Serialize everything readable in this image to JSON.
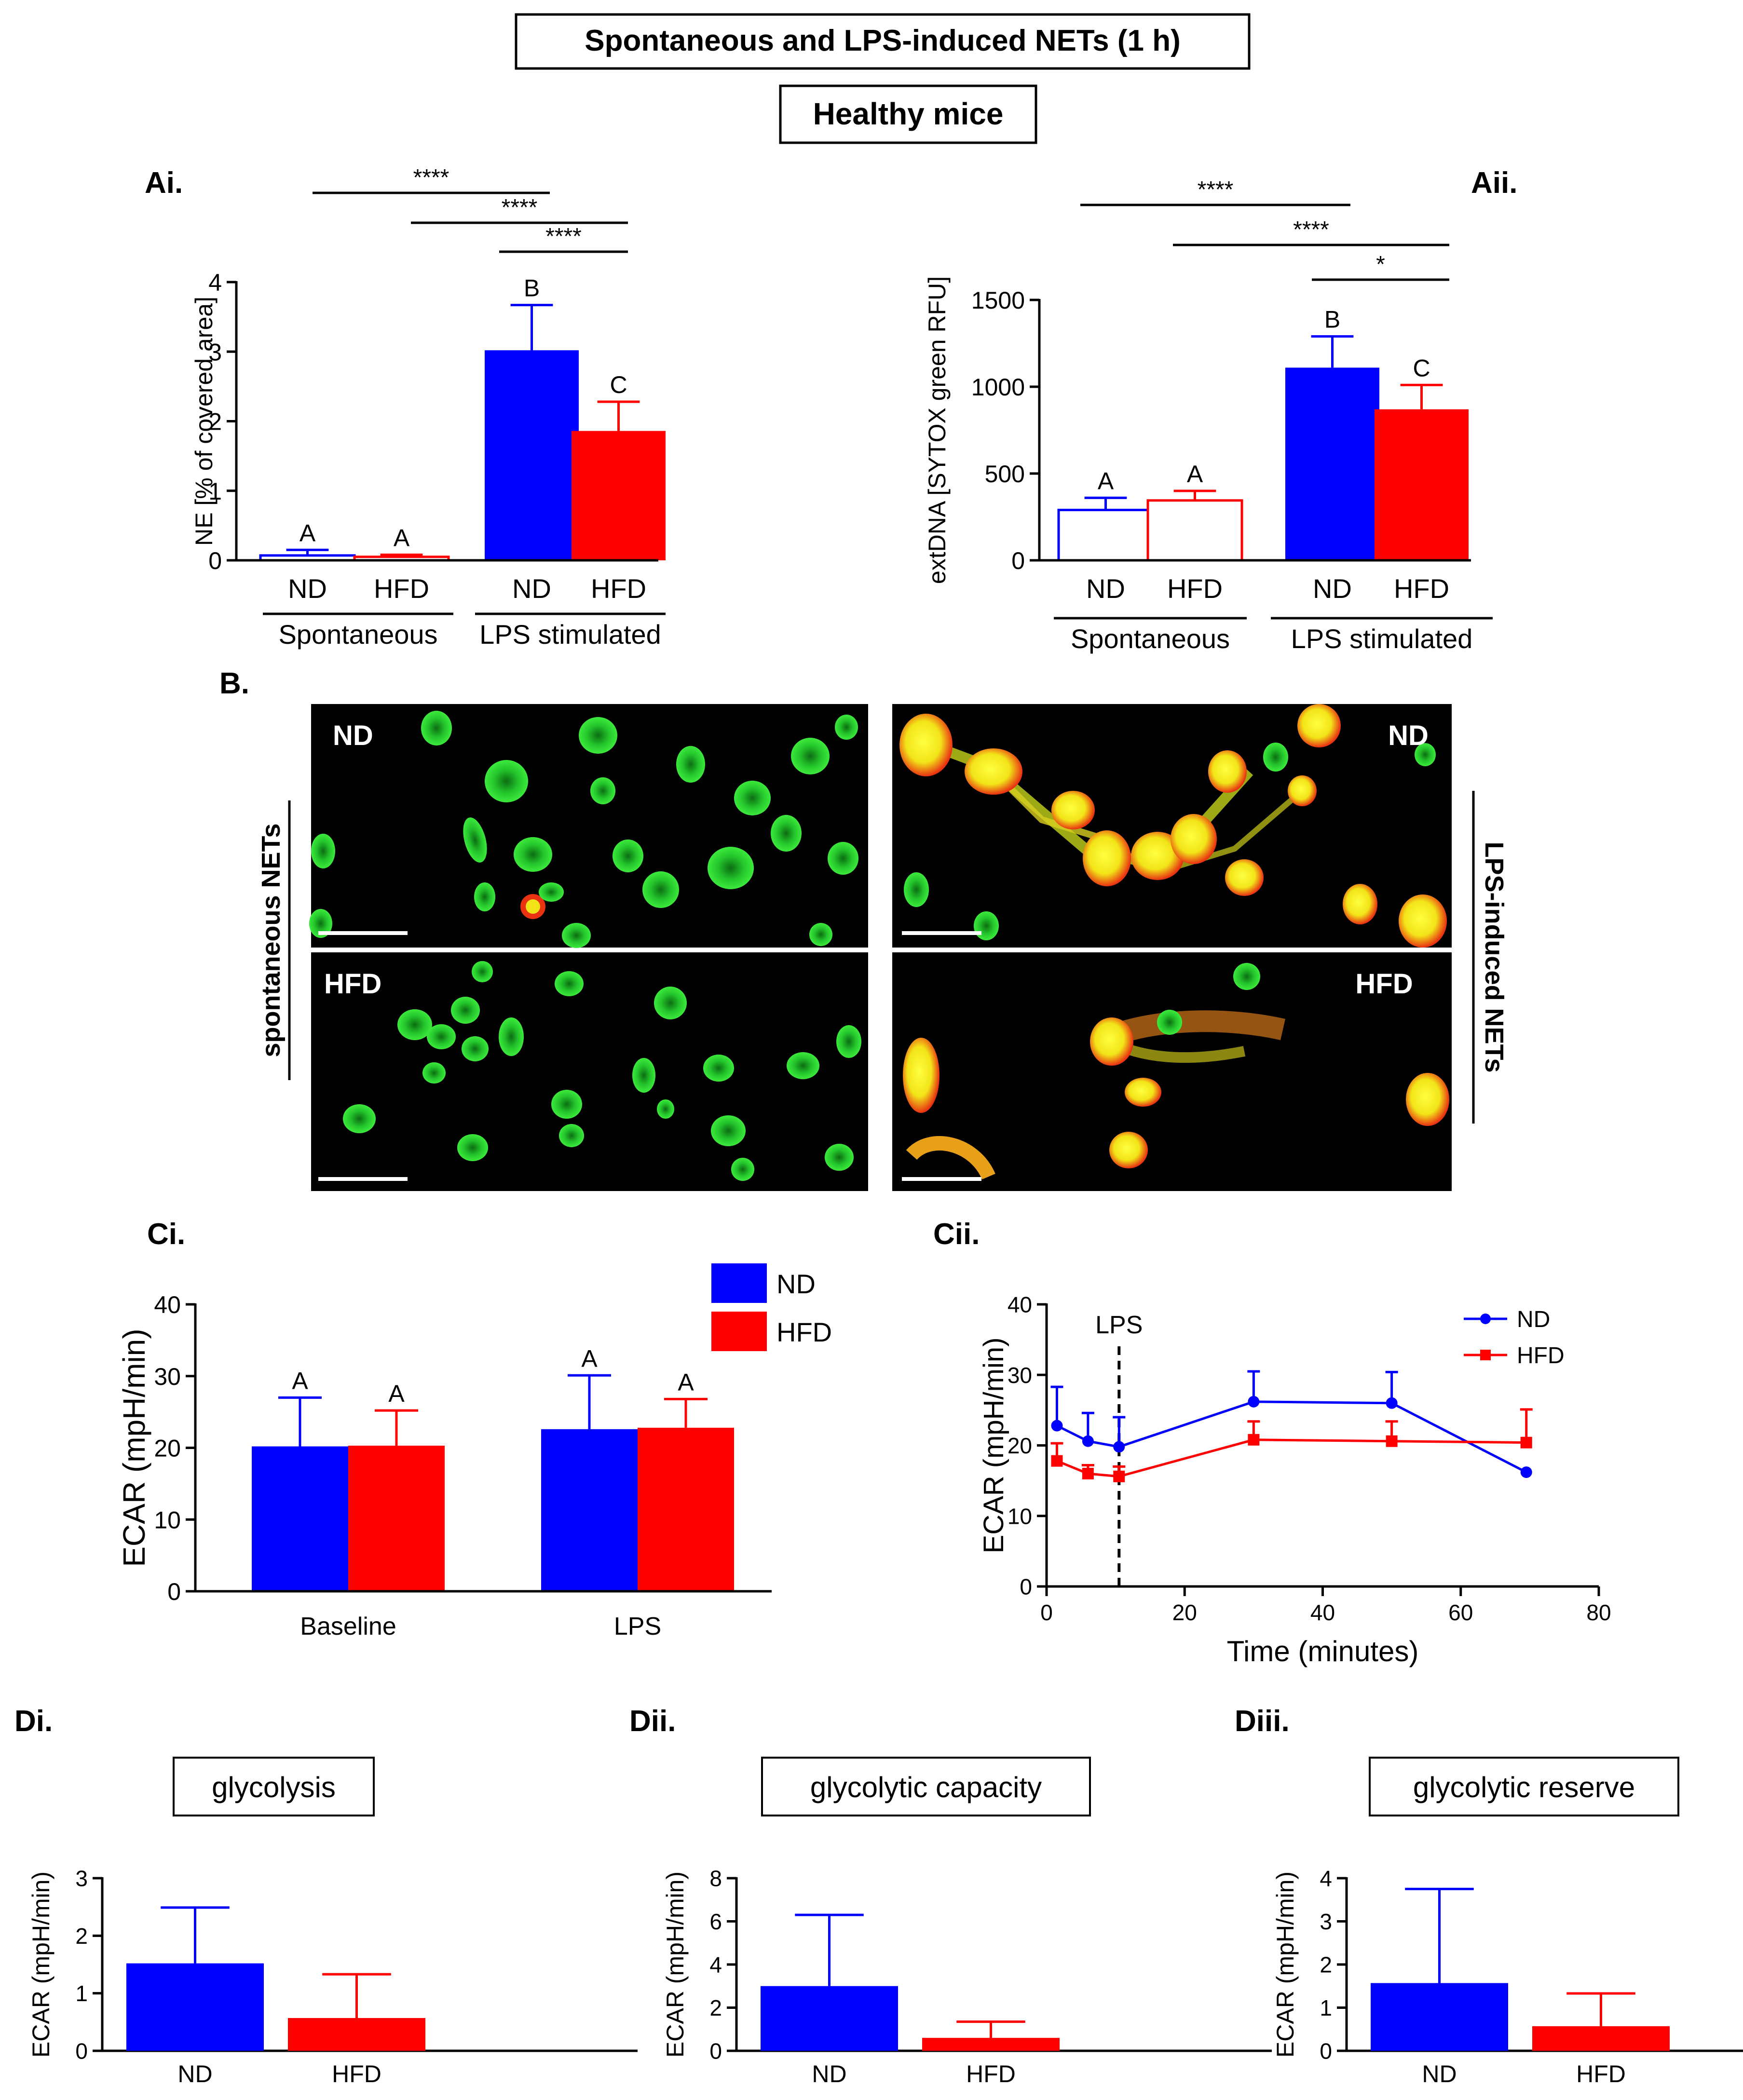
{
  "header": {
    "title": "Spontaneous and LPS-induced NETs (1 h)",
    "subtitle": "Healthy mice"
  },
  "colors": {
    "nd": "#0000ff",
    "hfd": "#ff0000",
    "axis": "#000000"
  },
  "legend": {
    "nd": "ND",
    "hfd": "HFD"
  },
  "chart_data": [
    {
      "id": "Ai",
      "panel": "Ai.",
      "type": "bar",
      "ylabel": "NE [% of covered area]",
      "ylim": [
        0,
        4
      ],
      "yticks": [
        "0",
        "1",
        "2",
        "3",
        "4"
      ],
      "categories": [
        "ND",
        "HFD",
        "ND",
        "HFD"
      ],
      "groups": [
        "Spontaneous",
        "LPS stimulated"
      ],
      "values": [
        0.07,
        0.05,
        3.02,
        1.86
      ],
      "errors": [
        0.08,
        0.03,
        0.65,
        0.42
      ],
      "filled": [
        false,
        false,
        true,
        true
      ],
      "letters": [
        "A",
        "A",
        "B",
        "C"
      ],
      "significance": [
        "****",
        "****",
        "****"
      ]
    },
    {
      "id": "Aii",
      "panel": "Aii.",
      "type": "bar",
      "ylabel": "extDNA [SYTOX green RFU]",
      "ylim": [
        0,
        1500
      ],
      "yticks": [
        "0",
        "500",
        "1000",
        "1500"
      ],
      "categories": [
        "ND",
        "HFD",
        "ND",
        "HFD"
      ],
      "groups": [
        "Spontaneous",
        "LPS stimulated"
      ],
      "values": [
        290,
        345,
        1110,
        870
      ],
      "errors": [
        70,
        55,
        180,
        140
      ],
      "filled": [
        false,
        false,
        true,
        true
      ],
      "letters": [
        "A",
        "A",
        "B",
        "C"
      ],
      "significance": [
        "****",
        "****",
        "*"
      ]
    },
    {
      "id": "Ci",
      "panel": "Ci.",
      "type": "bar",
      "ylabel": "ECAR (mpH/min)",
      "ylim": [
        0,
        40
      ],
      "yticks": [
        "0",
        "10",
        "20",
        "30",
        "40"
      ],
      "categories": [
        "Baseline",
        "LPS"
      ],
      "series": [
        {
          "name": "ND",
          "values": [
            20.2,
            22.6
          ],
          "errors": [
            6.8,
            7.5
          ],
          "letters": [
            "A",
            "A"
          ]
        },
        {
          "name": "HFD",
          "values": [
            20.3,
            22.8
          ],
          "errors": [
            4.9,
            4.0
          ],
          "letters": [
            "A",
            "A"
          ]
        }
      ]
    },
    {
      "id": "Cii",
      "panel": "Cii.",
      "type": "line",
      "ylabel": "ECAR (mpH/min)",
      "xlabel": "Time (minutes)",
      "xlim": [
        0,
        80
      ],
      "ylim": [
        0,
        40
      ],
      "xticks": [
        "0",
        "20",
        "40",
        "60",
        "80"
      ],
      "yticks": [
        "0",
        "10",
        "20",
        "30",
        "40"
      ],
      "annotation": {
        "label": "LPS",
        "x": 10.5
      },
      "series": [
        {
          "name": "ND",
          "x": [
            1.5,
            6,
            10.5,
            30,
            50,
            69.5
          ],
          "y": [
            22.8,
            20.6,
            19.8,
            26.2,
            26.0,
            16.2
          ],
          "errors": [
            5.5,
            4.0,
            4.2,
            4.3,
            4.4,
            0
          ]
        },
        {
          "name": "HFD",
          "x": [
            1.5,
            6,
            10.5,
            30,
            50,
            69.5
          ],
          "y": [
            17.8,
            16.0,
            15.6,
            20.8,
            20.6,
            20.4
          ],
          "errors": [
            2.5,
            1.2,
            1.4,
            2.6,
            2.8,
            4.7
          ]
        }
      ]
    },
    {
      "id": "Di",
      "panel": "Di.",
      "type": "bar",
      "title": "glycolysis",
      "ylabel": "ECAR (mpH/min)",
      "ylim": [
        0,
        3
      ],
      "yticks": [
        "0",
        "1",
        "2",
        "3"
      ],
      "categories": [
        "ND",
        "HFD"
      ],
      "values": [
        1.52,
        0.57
      ],
      "errors": [
        0.97,
        0.76
      ]
    },
    {
      "id": "Dii",
      "panel": "Dii.",
      "type": "bar",
      "title": "glycolytic capacity",
      "ylabel": "ECAR (mpH/min)",
      "ylim": [
        0,
        8
      ],
      "yticks": [
        "0",
        "2",
        "4",
        "6",
        "8"
      ],
      "categories": [
        "ND",
        "HFD"
      ],
      "values": [
        3.0,
        0.6
      ],
      "errors": [
        3.3,
        0.75
      ]
    },
    {
      "id": "Diii",
      "panel": "Diii.",
      "type": "bar",
      "title": "glycolytic reserve",
      "ylabel": "ECAR (mpH/min)",
      "ylim": [
        0,
        4
      ],
      "yticks": [
        "0",
        "1",
        "2",
        "3",
        "4"
      ],
      "categories": [
        "ND",
        "HFD"
      ],
      "values": [
        1.57,
        0.57
      ],
      "errors": [
        2.18,
        0.76
      ]
    }
  ],
  "micrographs": {
    "panel": "B.",
    "left_label": "spontaneous NETs",
    "right_label": "LPS-induced NETs",
    "tiles": [
      {
        "label": "ND"
      },
      {
        "label": "ND"
      },
      {
        "label": "HFD"
      },
      {
        "label": "HFD"
      }
    ]
  }
}
